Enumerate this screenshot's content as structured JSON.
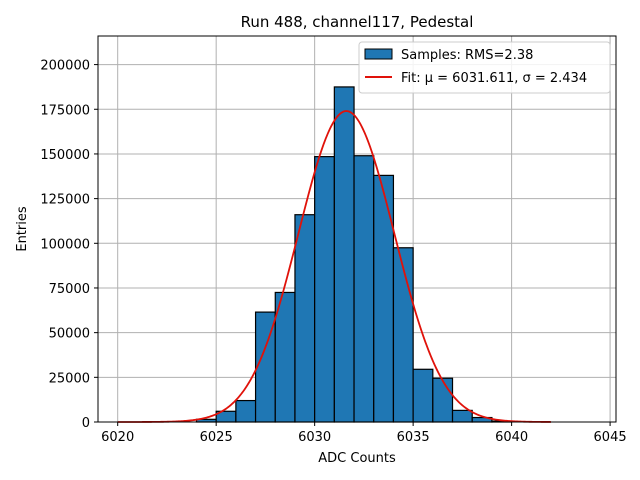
{
  "chart_data": {
    "type": "bar",
    "title": "Run 488, channel117, Pedestal",
    "xlabel": "ADC Counts",
    "ylabel": "Entries",
    "xlim": [
      6019,
      6045.3
    ],
    "ylim": [
      0,
      216000
    ],
    "xticks": [
      "6020",
      "6025",
      "6030",
      "6035",
      "6040",
      "6045"
    ],
    "xtick_values": [
      6020,
      6025,
      6030,
      6035,
      6040,
      6045
    ],
    "yticks": [
      "0",
      "25000",
      "50000",
      "75000",
      "100000",
      "125000",
      "150000",
      "175000",
      "200000"
    ],
    "ytick_values": [
      0,
      25000,
      50000,
      75000,
      100000,
      125000,
      150000,
      175000,
      200000
    ],
    "grid": true,
    "legend_position": "top-right",
    "bin_width": 1,
    "bins": [
      {
        "x": 6024,
        "value": 1500
      },
      {
        "x": 6025,
        "value": 6000
      },
      {
        "x": 6026,
        "value": 12000
      },
      {
        "x": 6027,
        "value": 61500
      },
      {
        "x": 6028,
        "value": 72500
      },
      {
        "x": 6029,
        "value": 116000
      },
      {
        "x": 6030,
        "value": 148500
      },
      {
        "x": 6031,
        "value": 187500
      },
      {
        "x": 6032,
        "value": 149000
      },
      {
        "x": 6033,
        "value": 138000
      },
      {
        "x": 6034,
        "value": 97500
      },
      {
        "x": 6035,
        "value": 29500
      },
      {
        "x": 6036,
        "value": 24500
      },
      {
        "x": 6037,
        "value": 6500
      },
      {
        "x": 6038,
        "value": 2500
      },
      {
        "x": 6039,
        "value": 500
      }
    ],
    "fit": {
      "mu": 6031.611,
      "sigma": 2.434,
      "amplitude": 174000,
      "x_range": [
        6020,
        6042
      ]
    },
    "legend": [
      {
        "label": "Samples: RMS=2.38",
        "kind": "patch"
      },
      {
        "label": "Fit: μ = 6031.611, σ = 2.434",
        "kind": "line"
      }
    ],
    "colors": {
      "bar_fill": "#1f77b4",
      "bar_edge": "#000000",
      "fit_line": "#e0120a",
      "grid": "#b0b0b0"
    }
  }
}
